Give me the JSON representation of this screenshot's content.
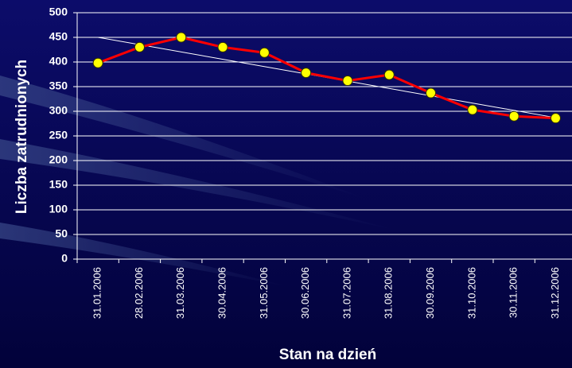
{
  "chart_data": {
    "type": "line",
    "x_label": "Stan na dzień",
    "y_label": "Liczba zatrudnionych",
    "categories": [
      "31.01.2006",
      "28.02.2006",
      "31.03.2006",
      "30.04.2006",
      "31.05.2006",
      "30.06.2006",
      "31.07.2006",
      "31.08.2006",
      "30.09.2006",
      "31.10.2006",
      "30.11.2006",
      "31.12.2006"
    ],
    "series": [
      {
        "color": "#ff0000",
        "marker_color": "#ffff00",
        "values": [
          398,
          430,
          450,
          430,
          419,
          378,
          362,
          374,
          337,
          303,
          290,
          286
        ]
      }
    ],
    "trendline": {
      "color": "#ffffff",
      "values": [
        450,
        287
      ]
    },
    "ylim": [
      0,
      500
    ],
    "yticks": [
      0,
      50,
      100,
      150,
      200,
      250,
      300,
      350,
      400,
      450,
      500
    ],
    "grid": true
  }
}
